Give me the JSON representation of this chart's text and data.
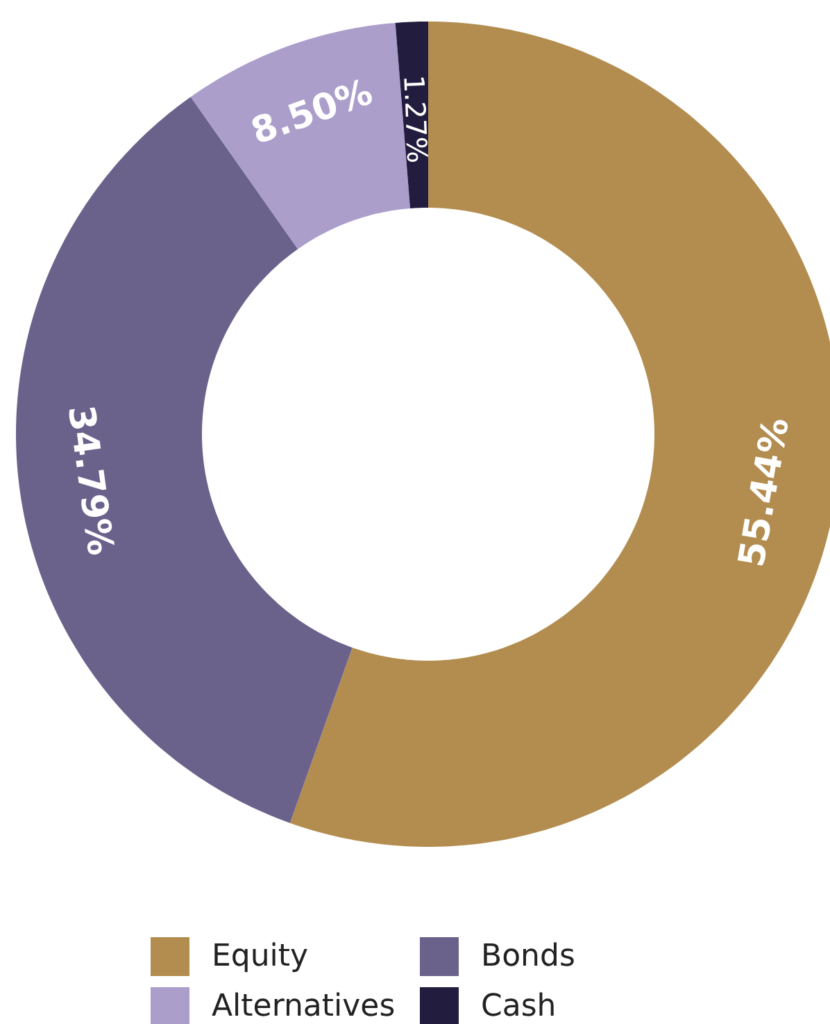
{
  "chart_data": {
    "type": "donut",
    "categories": [
      "Equity",
      "Bonds",
      "Alternatives",
      "Cash"
    ],
    "values": [
      55.44,
      34.79,
      8.5,
      1.27
    ],
    "colors": [
      "#b38d4f",
      "#6b628c",
      "#ab9ecb",
      "#221c3f"
    ],
    "value_labels": [
      "55.44%",
      "34.79%",
      "8.50%",
      "1.27%"
    ],
    "legend": "bottom"
  }
}
